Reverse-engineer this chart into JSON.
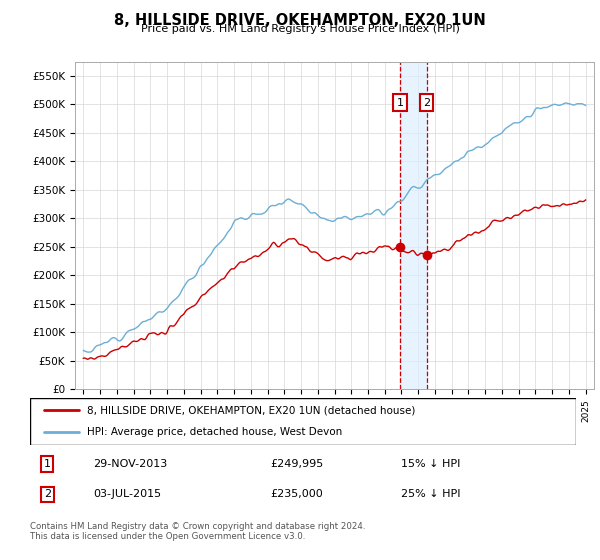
{
  "title": "8, HILLSIDE DRIVE, OKEHAMPTON, EX20 1UN",
  "subtitle": "Price paid vs. HM Land Registry's House Price Index (HPI)",
  "ylabel_ticks": [
    "£0",
    "£50K",
    "£100K",
    "£150K",
    "£200K",
    "£250K",
    "£300K",
    "£350K",
    "£400K",
    "£450K",
    "£500K",
    "£550K"
  ],
  "ytick_vals": [
    0,
    50000,
    100000,
    150000,
    200000,
    250000,
    300000,
    350000,
    400000,
    450000,
    500000,
    550000
  ],
  "ylim": [
    0,
    575000
  ],
  "xlim_start": 1994.5,
  "xlim_end": 2025.5,
  "transaction1_date": 2013.91,
  "transaction1_price": 249995,
  "transaction2_date": 2015.5,
  "transaction2_price": 235000,
  "legend1_label": "8, HILLSIDE DRIVE, OKEHAMPTON, EX20 1UN (detached house)",
  "legend2_label": "HPI: Average price, detached house, West Devon",
  "table_row1": [
    "1",
    "29-NOV-2013",
    "£249,995",
    "15% ↓ HPI"
  ],
  "table_row2": [
    "2",
    "03-JUL-2015",
    "£235,000",
    "25% ↓ HPI"
  ],
  "footer": "Contains HM Land Registry data © Crown copyright and database right 2024.\nThis data is licensed under the Open Government Licence v3.0.",
  "hpi_color": "#6baed6",
  "price_color": "#cc0000",
  "shade_color": "#ddeeff",
  "vline_color": "#cc0000",
  "background_color": "#ffffff",
  "grid_color": "#d8d8d8"
}
